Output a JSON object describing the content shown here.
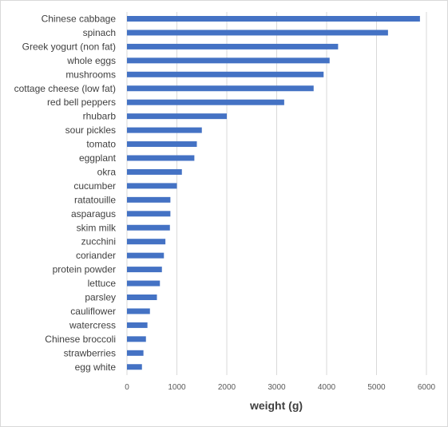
{
  "chart_data": {
    "type": "bar",
    "orientation": "horizontal",
    "title": "",
    "xlabel": "weight (g)",
    "ylabel": "",
    "xlim": [
      0,
      6000
    ],
    "xticks": [
      0,
      1000,
      2000,
      3000,
      4000,
      5000,
      6000
    ],
    "grid": true,
    "bar_color": "#4472c4",
    "grid_color": "#d9d9d9",
    "categories": [
      "Chinese cabbage",
      "spinach",
      "Greek yogurt (non fat)",
      "whole eggs",
      "mushrooms",
      "cottage cheese (low fat)",
      "red bell peppers",
      "rhubarb",
      "sour pickles",
      "tomato",
      "eggplant",
      "okra",
      "cucumber",
      "ratatouille",
      "asparagus",
      "skim milk",
      "zucchini",
      "coriander",
      "protein powder",
      "lettuce",
      "parsley",
      "cauliflower",
      "watercress",
      "Chinese broccoli",
      "strawberries",
      "egg white"
    ],
    "values": [
      5870,
      5230,
      4230,
      4060,
      3940,
      3740,
      3150,
      2000,
      1500,
      1400,
      1350,
      1100,
      1000,
      870,
      870,
      860,
      770,
      740,
      700,
      660,
      600,
      460,
      410,
      380,
      330,
      300
    ]
  }
}
